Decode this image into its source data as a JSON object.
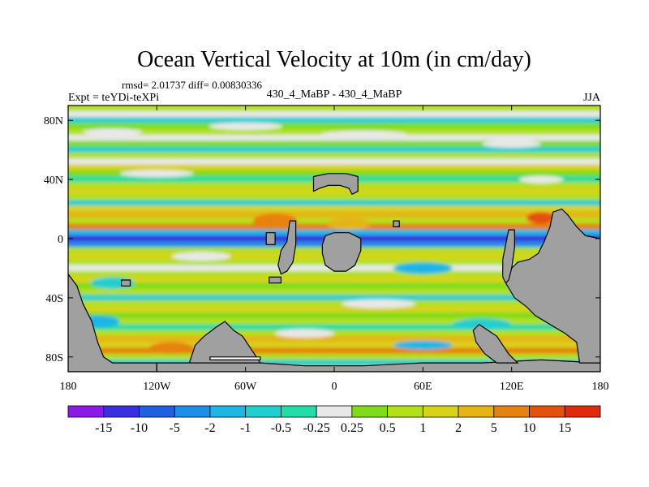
{
  "chart_data": {
    "type": "heatmap",
    "title": "Ocean Vertical Velocity at 10m (in cm/day)",
    "stats_line": "rmsd= 2.01737 diff= 0.00830336",
    "left_label": "Expt = teYDi-teXPi",
    "center_label": "430_4_MaBP - 430_4_MaBP",
    "right_label": "JJA",
    "xlim": [
      -180,
      180
    ],
    "ylim": [
      -90,
      90
    ],
    "x_ticks": [
      {
        "value": -180,
        "label": "180"
      },
      {
        "value": -120,
        "label": "120W"
      },
      {
        "value": -60,
        "label": "60W"
      },
      {
        "value": 0,
        "label": "0"
      },
      {
        "value": 60,
        "label": "60E"
      },
      {
        "value": 120,
        "label": "120E"
      },
      {
        "value": 180,
        "label": "180"
      }
    ],
    "y_ticks": [
      {
        "value": 80,
        "label": "80N"
      },
      {
        "value": 40,
        "label": "40N"
      },
      {
        "value": 0,
        "label": "0"
      },
      {
        "value": -40,
        "label": "40S"
      },
      {
        "value": -80,
        "label": "80S"
      }
    ],
    "colorbar": {
      "labels": [
        "-15",
        "-10",
        "-5",
        "-2",
        "-1",
        "-0.5",
        "-0.25",
        "0.25",
        "0.5",
        "1",
        "2",
        "5",
        "10",
        "15"
      ],
      "colors": [
        "#8c1ae6",
        "#3a2ee0",
        "#1f5fe0",
        "#1e8ee8",
        "#1fb6e6",
        "#22cfd0",
        "#23dca8",
        "#e8e8e8",
        "#7fdc1a",
        "#b4e01a",
        "#d8d21a",
        "#e6b414",
        "#e6820f",
        "#e6500d",
        "#e02a10"
      ]
    },
    "land_color": "#a0a0a0",
    "bands": [
      {
        "lat": 88,
        "level": 9
      },
      {
        "lat": 84,
        "level": 7
      },
      {
        "lat": 80,
        "level": 5
      },
      {
        "lat": 76,
        "level": 8
      },
      {
        "lat": 72,
        "level": 9
      },
      {
        "lat": 68,
        "level": 7
      },
      {
        "lat": 64,
        "level": 8
      },
      {
        "lat": 60,
        "level": 5
      },
      {
        "lat": 56,
        "level": 9
      },
      {
        "lat": 52,
        "level": 7
      },
      {
        "lat": 48,
        "level": 10
      },
      {
        "lat": 44,
        "level": 8
      },
      {
        "lat": 40,
        "level": 6
      },
      {
        "lat": 36,
        "level": 9
      },
      {
        "lat": 32,
        "level": 10
      },
      {
        "lat": 28,
        "level": 9
      },
      {
        "lat": 24,
        "level": 5
      },
      {
        "lat": 20,
        "level": 10
      },
      {
        "lat": 16,
        "level": 11
      },
      {
        "lat": 12,
        "level": 9
      },
      {
        "lat": 8,
        "level": 12
      },
      {
        "lat": 4,
        "level": 4
      },
      {
        "lat": 0,
        "level": 1
      },
      {
        "lat": -4,
        "level": 3
      },
      {
        "lat": -8,
        "level": 9
      },
      {
        "lat": -12,
        "level": 10
      },
      {
        "lat": -16,
        "level": 9
      },
      {
        "lat": -20,
        "level": 7
      },
      {
        "lat": -24,
        "level": 9
      },
      {
        "lat": -28,
        "level": 10
      },
      {
        "lat": -32,
        "level": 8
      },
      {
        "lat": -36,
        "level": 9
      },
      {
        "lat": -40,
        "level": 5
      },
      {
        "lat": -44,
        "level": 9
      },
      {
        "lat": -48,
        "level": 10
      },
      {
        "lat": -52,
        "level": 8
      },
      {
        "lat": -56,
        "level": 9
      },
      {
        "lat": -60,
        "level": 6
      },
      {
        "lat": -64,
        "level": 9
      },
      {
        "lat": -68,
        "level": 11
      },
      {
        "lat": -72,
        "level": 10
      },
      {
        "lat": -76,
        "level": 12
      },
      {
        "lat": -80,
        "level": 9
      },
      {
        "lat": -84,
        "level": 5
      },
      {
        "lat": -88,
        "level": 9
      }
    ],
    "patches": [
      {
        "lon": -150,
        "lat": 72,
        "w": 40,
        "h": 5,
        "level": 7
      },
      {
        "lon": -60,
        "lat": 76,
        "w": 50,
        "h": 5,
        "level": 7
      },
      {
        "lon": 20,
        "lat": 70,
        "w": 60,
        "h": 6,
        "level": 7
      },
      {
        "lon": 120,
        "lat": 64,
        "w": 40,
        "h": 5,
        "level": 7
      },
      {
        "lon": -120,
        "lat": 44,
        "w": 50,
        "h": 5,
        "level": 7
      },
      {
        "lon": 140,
        "lat": 40,
        "w": 30,
        "h": 5,
        "level": 7
      },
      {
        "lon": -40,
        "lat": 12,
        "w": 30,
        "h": 10,
        "level": 12
      },
      {
        "lon": 10,
        "lat": 10,
        "w": 30,
        "h": 8,
        "level": 11
      },
      {
        "lon": 140,
        "lat": 14,
        "w": 20,
        "h": 8,
        "level": 13
      },
      {
        "lon": -90,
        "lat": -12,
        "w": 40,
        "h": 6,
        "level": 7
      },
      {
        "lon": 60,
        "lat": -20,
        "w": 40,
        "h": 8,
        "level": 4
      },
      {
        "lon": -150,
        "lat": -30,
        "w": 30,
        "h": 8,
        "level": 5
      },
      {
        "lon": 30,
        "lat": -44,
        "w": 50,
        "h": 6,
        "level": 7
      },
      {
        "lon": -160,
        "lat": -56,
        "w": 30,
        "h": 8,
        "level": 4
      },
      {
        "lon": 100,
        "lat": -58,
        "w": 40,
        "h": 8,
        "level": 5
      },
      {
        "lon": -20,
        "lat": -64,
        "w": 40,
        "h": 6,
        "level": 7
      },
      {
        "lon": -110,
        "lat": -74,
        "w": 30,
        "h": 8,
        "level": 12
      },
      {
        "lon": 60,
        "lat": -72,
        "w": 40,
        "h": 6,
        "level": 4
      }
    ],
    "land": [
      {
        "name": "south-america-west",
        "points": [
          [
            -180,
            -24
          ],
          [
            -176,
            -30
          ],
          [
            -172,
            -40
          ],
          [
            -168,
            -48
          ],
          [
            -164,
            -60
          ],
          [
            -160,
            -76
          ],
          [
            -154,
            -82
          ],
          [
            -180,
            -90
          ]
        ]
      },
      {
        "name": "antarctic-block-west",
        "points": [
          [
            -180,
            -90
          ],
          [
            -180,
            -24
          ],
          [
            -174,
            -32
          ],
          [
            -170,
            -44
          ],
          [
            -164,
            -56
          ],
          [
            -160,
            -70
          ],
          [
            -156,
            -80
          ],
          [
            -150,
            -84
          ],
          [
            -120,
            -84
          ],
          [
            -120,
            -90
          ]
        ]
      },
      {
        "name": "antarctic-peninsula",
        "points": [
          [
            -98,
            -84
          ],
          [
            -94,
            -72
          ],
          [
            -88,
            -66
          ],
          [
            -80,
            -60
          ],
          [
            -74,
            -56
          ],
          [
            -68,
            -62
          ],
          [
            -62,
            -66
          ],
          [
            -58,
            -72
          ],
          [
            -54,
            -78
          ],
          [
            -50,
            -84
          ]
        ]
      },
      {
        "name": "antarctic-east",
        "points": [
          [
            -120,
            -90
          ],
          [
            -120,
            -84
          ],
          [
            -98,
            -84
          ],
          [
            -50,
            -84
          ],
          [
            -20,
            -86
          ],
          [
            20,
            -86
          ],
          [
            60,
            -84
          ],
          [
            100,
            -84
          ],
          [
            140,
            -82
          ],
          [
            180,
            -84
          ],
          [
            180,
            -90
          ]
        ]
      },
      {
        "name": "australia-block",
        "points": [
          [
            148,
            18
          ],
          [
            154,
            20
          ],
          [
            158,
            16
          ],
          [
            164,
            8
          ],
          [
            170,
            2
          ],
          [
            180,
            0
          ],
          [
            180,
            -84
          ],
          [
            166,
            -84
          ],
          [
            164,
            -70
          ],
          [
            156,
            -64
          ],
          [
            146,
            -58
          ],
          [
            136,
            -52
          ],
          [
            130,
            -46
          ],
          [
            122,
            -40
          ],
          [
            116,
            -30
          ],
          [
            118,
            -22
          ],
          [
            124,
            -16
          ],
          [
            132,
            -14
          ],
          [
            138,
            -10
          ],
          [
            142,
            -2
          ],
          [
            146,
            8
          ]
        ]
      },
      {
        "name": "southern-peninsula",
        "points": [
          [
            98,
            -58
          ],
          [
            104,
            -62
          ],
          [
            110,
            -66
          ],
          [
            114,
            -72
          ],
          [
            118,
            -78
          ],
          [
            124,
            -84
          ],
          [
            110,
            -84
          ],
          [
            102,
            -78
          ],
          [
            96,
            -70
          ],
          [
            94,
            -62
          ]
        ]
      },
      {
        "name": "central-landmass",
        "points": [
          [
            -6,
            2
          ],
          [
            0,
            4
          ],
          [
            10,
            4
          ],
          [
            18,
            0
          ],
          [
            18,
            -8
          ],
          [
            14,
            -18
          ],
          [
            8,
            -22
          ],
          [
            0,
            -22
          ],
          [
            -6,
            -18
          ],
          [
            -8,
            -10
          ],
          [
            -8,
            -4
          ]
        ]
      },
      {
        "name": "west-strip",
        "points": [
          [
            -30,
            12
          ],
          [
            -26,
            12
          ],
          [
            -26,
            -4
          ],
          [
            -28,
            -16
          ],
          [
            -32,
            -22
          ],
          [
            -36,
            -24
          ],
          [
            -38,
            -18
          ],
          [
            -36,
            -8
          ],
          [
            -32,
            -2
          ]
        ]
      },
      {
        "name": "north-block",
        "points": [
          [
            -14,
            42
          ],
          [
            -4,
            44
          ],
          [
            8,
            44
          ],
          [
            16,
            42
          ],
          [
            16,
            32
          ],
          [
            12,
            30
          ],
          [
            10,
            34
          ],
          [
            4,
            36
          ],
          [
            -4,
            36
          ],
          [
            -10,
            34
          ],
          [
            -14,
            32
          ]
        ]
      },
      {
        "name": "east-strip",
        "points": [
          [
            118,
            6
          ],
          [
            122,
            6
          ],
          [
            122,
            -6
          ],
          [
            120,
            -20
          ],
          [
            118,
            -28
          ],
          [
            116,
            -30
          ],
          [
            114,
            -26
          ],
          [
            114,
            -14
          ],
          [
            116,
            -4
          ]
        ]
      },
      {
        "name": "islands-equator",
        "points": [
          [
            -46,
            4
          ],
          [
            -40,
            4
          ],
          [
            -40,
            -4
          ],
          [
            -46,
            -4
          ]
        ]
      },
      {
        "name": "island-ne",
        "points": [
          [
            40,
            12
          ],
          [
            44,
            12
          ],
          [
            44,
            8
          ],
          [
            40,
            8
          ]
        ]
      },
      {
        "name": "island-sw",
        "points": [
          [
            -144,
            -28
          ],
          [
            -138,
            -28
          ],
          [
            -138,
            -32
          ],
          [
            -144,
            -32
          ]
        ]
      },
      {
        "name": "island-s",
        "points": [
          [
            -44,
            -26
          ],
          [
            -36,
            -26
          ],
          [
            -36,
            -30
          ],
          [
            -44,
            -30
          ]
        ]
      },
      {
        "name": "ice-bar",
        "points": [
          [
            -84,
            -80
          ],
          [
            -50,
            -80
          ],
          [
            -50,
            -82
          ],
          [
            -84,
            -82
          ]
        ]
      }
    ]
  }
}
